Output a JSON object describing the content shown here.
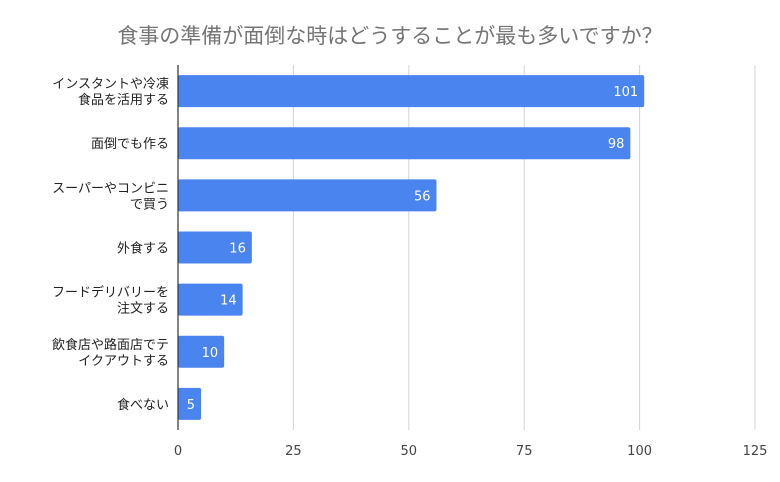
{
  "chart_data": {
    "type": "bar",
    "orientation": "horizontal",
    "title": "食事の準備が面倒な時はどうすることが最も多いですか？",
    "xlabel": "",
    "ylabel": "",
    "categories": [
      [
        "インスタントや冷凍",
        "食品を活用する"
      ],
      [
        "面倒でも作る"
      ],
      [
        "スーパーやコンビニ",
        "で買う"
      ],
      [
        "外食する"
      ],
      [
        "フードデリバリーを",
        "注文する"
      ],
      [
        "飲食店や路面店でテ",
        "イクアウトする"
      ],
      [
        "食べない"
      ]
    ],
    "values": [
      101,
      98,
      56,
      16,
      14,
      10,
      5
    ],
    "xlim": [
      0,
      125
    ],
    "xticks": [
      0,
      25,
      50,
      75,
      100,
      125
    ],
    "grid": true,
    "legend": "none",
    "colors": {
      "bar": "#4a84ee",
      "grid": "#d4d4d4",
      "axis": "#333333"
    }
  }
}
